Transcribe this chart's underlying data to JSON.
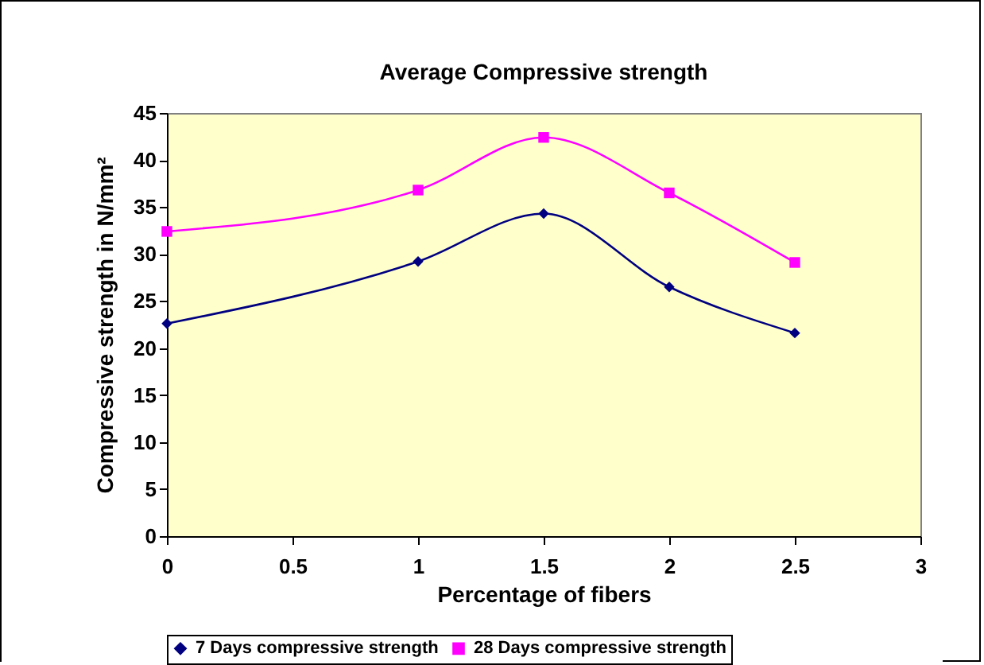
{
  "chart_data": {
    "type": "line",
    "title": "Average Compressive strength",
    "xlabel": "Percentage of fibers",
    "ylabel": "Compressive strength in N/mm²",
    "x": [
      0,
      1,
      1.5,
      2,
      2.5
    ],
    "series": [
      {
        "name": "7 Days compressive strength",
        "color": "#000080",
        "marker": "diamond",
        "values": [
          22.6,
          29.2,
          34.3,
          26.5,
          21.6
        ]
      },
      {
        "name": "28 Days compressive strength",
        "color": "#ff00ff",
        "marker": "square",
        "values": [
          32.4,
          36.8,
          42.4,
          36.5,
          29.1
        ]
      }
    ],
    "xlim": [
      0,
      3
    ],
    "xticks": [
      0,
      0.5,
      1,
      1.5,
      2,
      2.5,
      3
    ],
    "ylim": [
      0,
      45
    ],
    "yticks": [
      0,
      5,
      10,
      15,
      20,
      25,
      30,
      35,
      40,
      45
    ],
    "grid": false,
    "legend": "bottom",
    "line_style": "solid"
  }
}
